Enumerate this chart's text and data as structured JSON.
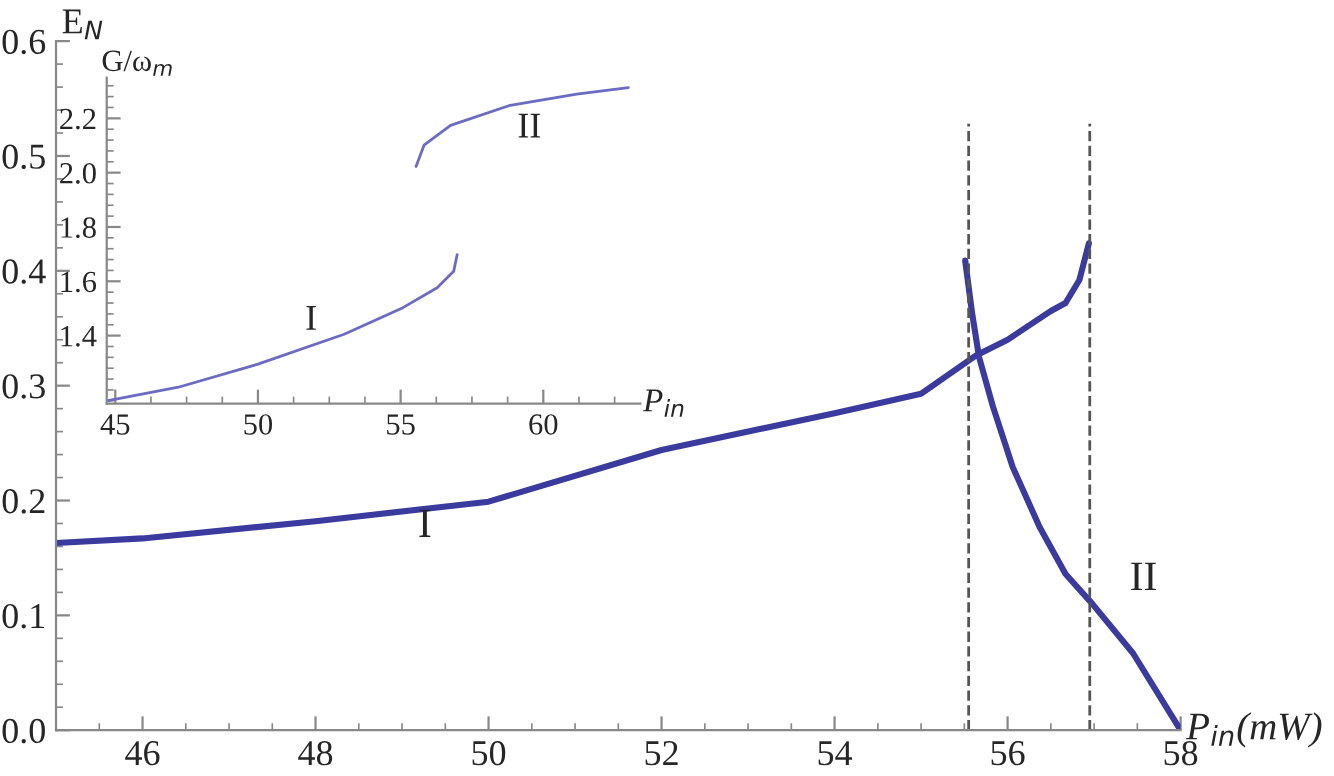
{
  "chart_data": [
    {
      "type": "line",
      "xlabel": "P$_{in}$(mW)",
      "ylabel": "E$_{N}$",
      "xlim": [
        45,
        58
      ],
      "ylim": [
        0,
        0.6
      ],
      "xticks": [
        46,
        48,
        50,
        52,
        54,
        56,
        58
      ],
      "yticks": [
        {
          "value": 0,
          "label": "0.0"
        },
        0.1,
        0.2,
        0.3,
        0.4,
        0.5,
        0.6
      ],
      "grid": false,
      "legend": false,
      "line_style": "solid",
      "series": [
        {
          "color": "#3b3b9f",
          "x": [
            45,
            46,
            48,
            50,
            52,
            54,
            55,
            55.63,
            56,
            56.5,
            56.67,
            56.83,
            56.94
          ],
          "values": [
            0.163,
            0.167,
            0.182,
            0.199,
            0.244,
            0.276,
            0.293,
            0.326,
            0.34,
            0.365,
            0.372,
            0.392,
            0.424
          ]
        },
        {
          "color": "#3b3b9f",
          "x": [
            55.51,
            55.59,
            55.67,
            55.83,
            56.06,
            56.37,
            56.67,
            56.98,
            57.45,
            58
          ],
          "values": [
            0.409,
            0.363,
            0.325,
            0.282,
            0.229,
            0.177,
            0.136,
            0.11,
            0.067,
            0.0
          ]
        }
      ],
      "ref_lines": [
        {
          "axis": "x",
          "value": 55.55,
          "color": "#555555",
          "line_style": "dashed"
        },
        {
          "axis": "x",
          "value": 56.95,
          "color": "#555555",
          "line_style": "dashed"
        }
      ],
      "annotations": [
        "I",
        "II"
      ]
    },
    {
      "type": "line",
      "xlabel": "P$_{in}$",
      "ylabel": "G/ω$_{m}$",
      "xlim": [
        44.7,
        63.4
      ],
      "ylim": [
        1.15,
        2.35
      ],
      "xticks": [
        45,
        50,
        55,
        60
      ],
      "yticks": [
        1.4,
        1.6,
        1.8,
        {
          "value": 2,
          "label": "2.0"
        },
        2.2
      ],
      "grid": false,
      "legend": false,
      "line_style": "solid",
      "series": [
        {
          "color": "#6b6bc4",
          "x": [
            44.7,
            47.21,
            50,
            53.02,
            55.08,
            56.28,
            56.86,
            56.98
          ],
          "values": [
            1.16,
            1.21,
            1.295,
            1.405,
            1.503,
            1.576,
            1.637,
            1.698
          ]
        },
        {
          "color": "#6b6bc4",
          "x": [
            55.54,
            55.82,
            56.75,
            58.84,
            61.17,
            62.98
          ],
          "values": [
            2.023,
            2.101,
            2.174,
            2.248,
            2.289,
            2.313
          ]
        }
      ],
      "annotations": [
        "I",
        "II"
      ]
    }
  ]
}
